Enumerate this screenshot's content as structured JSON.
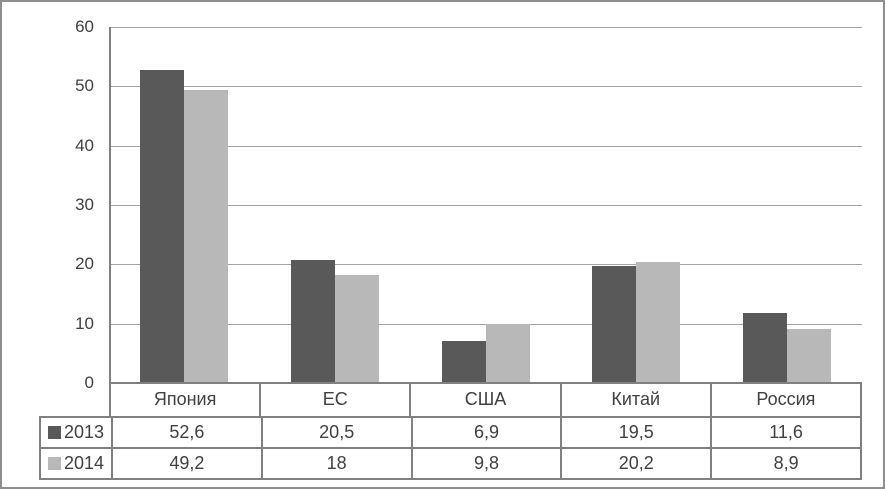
{
  "chart_data": {
    "type": "bar",
    "title": "",
    "xlabel": "",
    "ylabel": "",
    "categories": [
      "Япония",
      "ЕС",
      "США",
      "Китай",
      "Россия"
    ],
    "series": [
      {
        "name": "2013",
        "color": "#595959",
        "values": [
          52.6,
          20.5,
          6.9,
          19.5,
          11.6
        ],
        "value_labels": [
          "52,6",
          "20,5",
          "6,9",
          "19,5",
          "11,6"
        ]
      },
      {
        "name": "2014",
        "color": "#b8b8b8",
        "values": [
          49.2,
          18,
          9.8,
          20.2,
          8.9
        ],
        "value_labels": [
          "49,2",
          "18",
          "9,8",
          "20,2",
          "8,9"
        ]
      }
    ],
    "ylim": [
      0,
      60
    ],
    "ytick_interval": 10,
    "ytick_labels": [
      "60",
      "50",
      "40",
      "30",
      "20",
      "10",
      "0"
    ],
    "grid": true,
    "legend_position": "data-table-left",
    "data_table_shown": true
  },
  "colors": {
    "bar_2013": "#595959",
    "bar_2014": "#b8b8b8",
    "gridline": "#a3a3a3",
    "axis_and_table_border": "#808080",
    "outer_frame": "#8e8e8e",
    "text": "#404040",
    "background": "#ffffff"
  }
}
